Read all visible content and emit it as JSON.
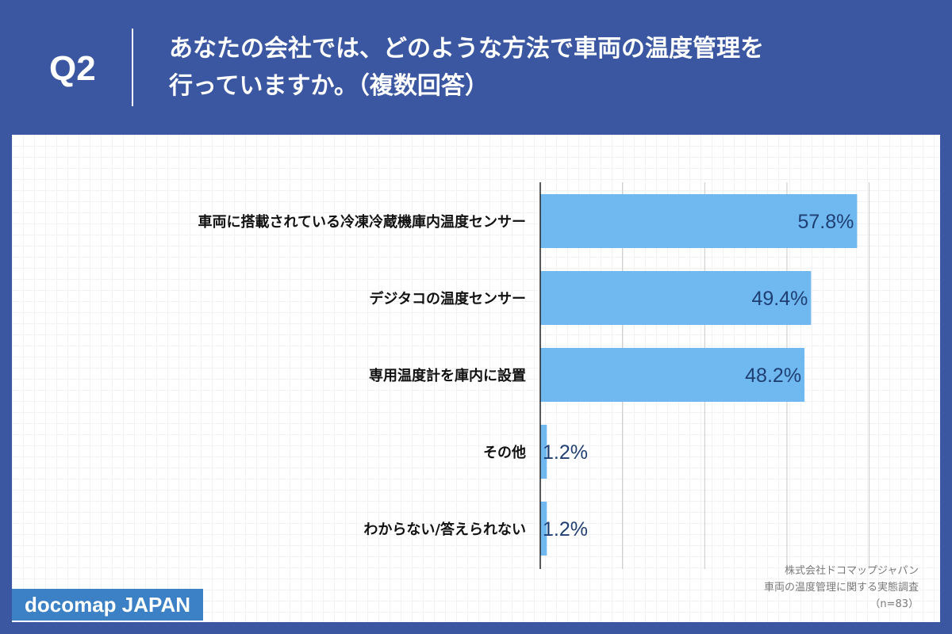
{
  "header": {
    "question_number": "Q2",
    "question_line1": "あなたの会社では、どのような方法で車両の温度管理を",
    "question_line2": "行っていますか。（複数回答）"
  },
  "source": {
    "line1": "株式会社ドコマップジャパン",
    "line2": "車両の温度管理に関する実態調査",
    "line3": "（n=83）"
  },
  "logo": {
    "text": "docomap JAPAN"
  },
  "colors": {
    "background": "#3b57a1",
    "bar": "#6fb8f0",
    "value_text": "#1f3f73",
    "logo": "#3c80c6"
  },
  "chart_data": {
    "type": "bar",
    "orientation": "horizontal",
    "categories": [
      "車両に搭載されている冷凍冷蔵機庫内温度センサー",
      "デジタコの温度センサー",
      "専用温度計を庫内に設置",
      "その他",
      "わからない/答えられない"
    ],
    "values": [
      57.8,
      49.4,
      48.2,
      1.2,
      1.2
    ],
    "value_labels": [
      "57.8%",
      "49.4%",
      "48.2%",
      "1.2%",
      "1.2%"
    ],
    "unit": "%",
    "xlim": [
      0,
      60
    ],
    "grid": true
  }
}
